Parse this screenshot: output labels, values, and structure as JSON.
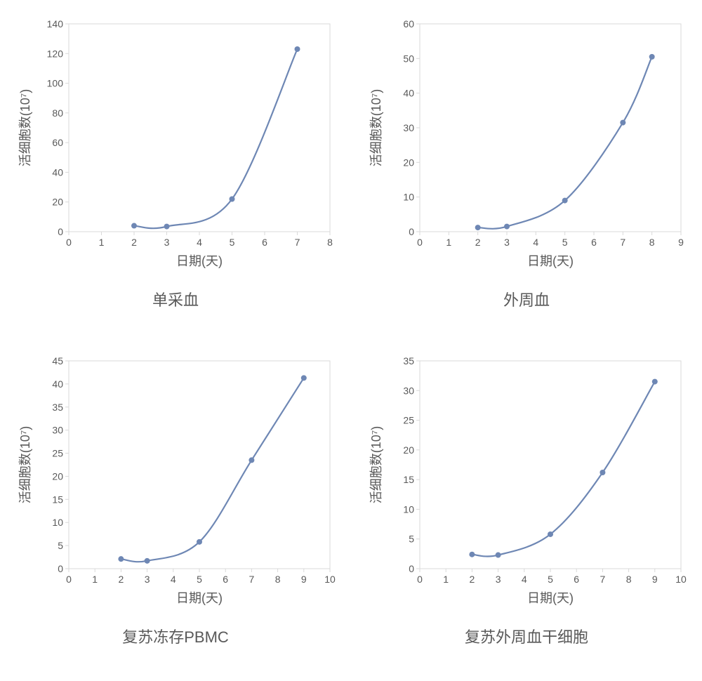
{
  "global": {
    "background_color": "#ffffff",
    "plot_border_color": "#d9d9d9",
    "line_color": "#6e87b4",
    "marker_color": "#6e87b4",
    "tick_font_color": "#595959",
    "tick_font_size": 14,
    "axis_label_font_size": 18,
    "axis_label_color": "#595959",
    "title_font_size": 22,
    "title_color": "#595959",
    "line_width": 2.2,
    "marker_radius": 4
  },
  "charts": [
    {
      "id": "apheresis",
      "title": "单采血",
      "xlabel": "日期(天)",
      "ylabel": "活细胞数(10⁷)",
      "xlim": [
        0,
        8
      ],
      "ylim": [
        0,
        140
      ],
      "xticks": [
        0,
        1,
        2,
        3,
        4,
        5,
        6,
        7,
        8
      ],
      "yticks": [
        0,
        20,
        40,
        60,
        80,
        100,
        120,
        140
      ],
      "points": [
        {
          "x": 2,
          "y": 4
        },
        {
          "x": 3,
          "y": 3.5
        },
        {
          "x": 5,
          "y": 22
        },
        {
          "x": 7,
          "y": 123
        }
      ]
    },
    {
      "id": "peripheral",
      "title": "外周血",
      "xlabel": "日期(天)",
      "ylabel": "活细胞数(10⁷)",
      "xlim": [
        0,
        9
      ],
      "ylim": [
        0,
        60
      ],
      "xticks": [
        0,
        1,
        2,
        3,
        4,
        5,
        6,
        7,
        8,
        9
      ],
      "yticks": [
        0,
        10,
        20,
        30,
        40,
        50,
        60
      ],
      "points": [
        {
          "x": 2,
          "y": 1.2
        },
        {
          "x": 3,
          "y": 1.5
        },
        {
          "x": 5,
          "y": 9
        },
        {
          "x": 7,
          "y": 31.5
        },
        {
          "x": 8,
          "y": 50.5
        }
      ]
    },
    {
      "id": "pbmc",
      "title": "复苏冻存PBMC",
      "xlabel": "日期(天)",
      "ylabel": "活细胞数(10⁷)",
      "xlim": [
        0,
        10
      ],
      "ylim": [
        0,
        45
      ],
      "xticks": [
        0,
        1,
        2,
        3,
        4,
        5,
        6,
        7,
        8,
        9,
        10
      ],
      "yticks": [
        0,
        5,
        10,
        15,
        20,
        25,
        30,
        35,
        40,
        45
      ],
      "points": [
        {
          "x": 2,
          "y": 2.1
        },
        {
          "x": 3,
          "y": 1.7
        },
        {
          "x": 5,
          "y": 5.8
        },
        {
          "x": 7,
          "y": 23.5
        },
        {
          "x": 9,
          "y": 41.3
        }
      ]
    },
    {
      "id": "stem",
      "title": "复苏外周血干细胞",
      "xlabel": "日期(天)",
      "ylabel": "活细胞数(10⁷)",
      "xlim": [
        0,
        10
      ],
      "ylim": [
        0,
        35
      ],
      "xticks": [
        0,
        1,
        2,
        3,
        4,
        5,
        6,
        7,
        8,
        9,
        10
      ],
      "yticks": [
        0,
        5,
        10,
        15,
        20,
        25,
        30,
        35
      ],
      "points": [
        {
          "x": 2,
          "y": 2.4
        },
        {
          "x": 3,
          "y": 2.3
        },
        {
          "x": 5,
          "y": 5.8
        },
        {
          "x": 7,
          "y": 16.2
        },
        {
          "x": 9,
          "y": 31.5
        }
      ]
    }
  ]
}
